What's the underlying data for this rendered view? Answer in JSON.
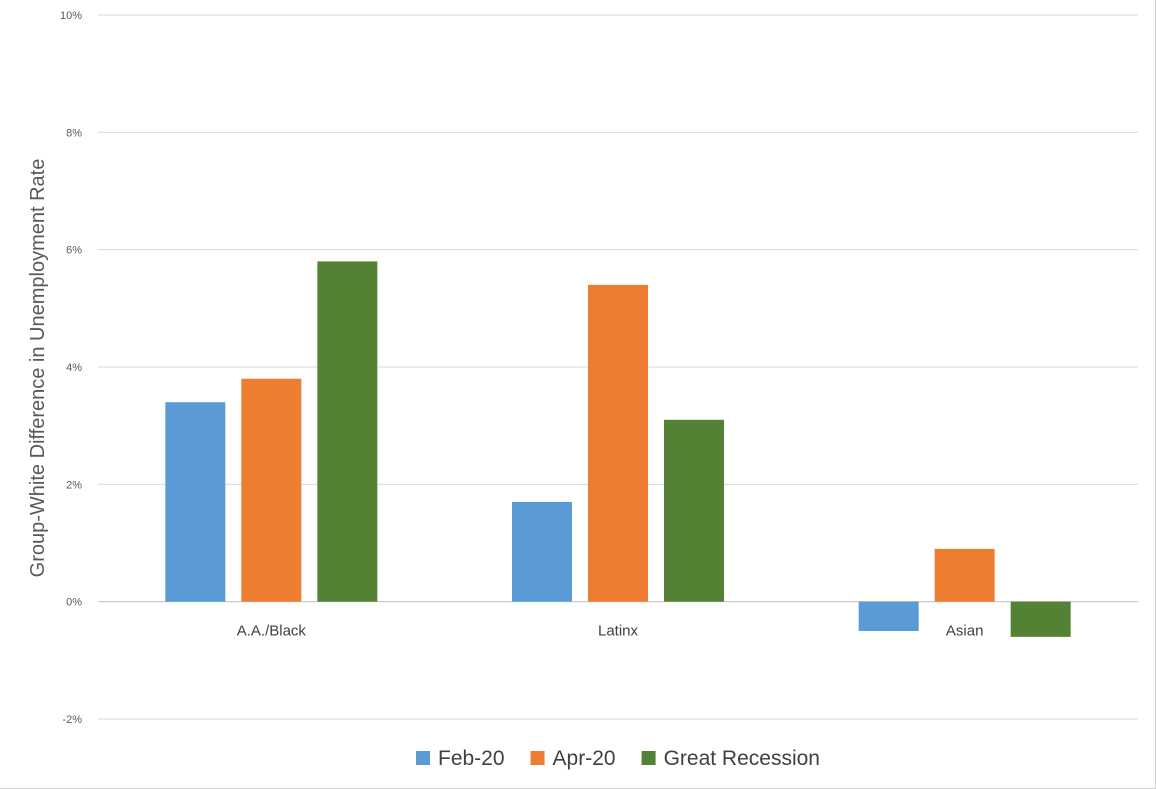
{
  "chart_data": {
    "type": "bar",
    "title": "",
    "xlabel": "",
    "ylabel": "Group-White Difference in Unemployment Rate",
    "categories": [
      "A.A./Black",
      "Latinx",
      "Asian"
    ],
    "series": [
      {
        "name": "Feb-20",
        "color": "#5b9bd5",
        "values": [
          3.4,
          1.7,
          -0.5
        ]
      },
      {
        "name": "Apr-20",
        "color": "#ed7d31",
        "values": [
          3.8,
          5.4,
          0.9
        ]
      },
      {
        "name": "Great Recession",
        "color": "#548235",
        "values": [
          5.8,
          3.1,
          -0.6
        ]
      }
    ],
    "ylim": [
      -2,
      10
    ],
    "yticks": [
      -2,
      0,
      2,
      4,
      6,
      8,
      10
    ],
    "ytick_labels": [
      "-2%",
      "0%",
      "2%",
      "4%",
      "6%",
      "8%",
      "10%"
    ],
    "grid": true,
    "legend_position": "bottom"
  }
}
